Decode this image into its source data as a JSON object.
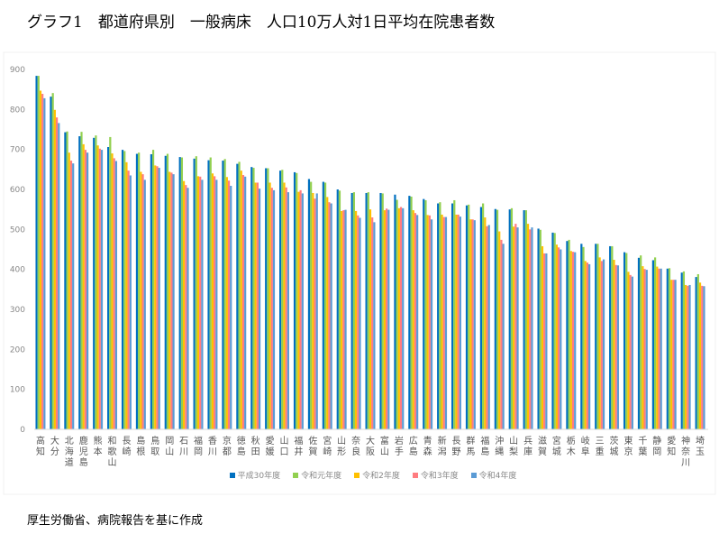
{
  "title": "グラフ1　都道府県別　一般病床　人口10万人対1日平均在院患者数",
  "source": "厚生労働省、病院報告を基に作成",
  "chart_data": {
    "type": "bar",
    "title": "グラフ1　都道府県別　一般病床　人口10万人対1日平均在院患者数",
    "xlabel": "",
    "ylabel": "",
    "ylim": [
      0,
      900
    ],
    "yticks": [
      0,
      100,
      200,
      300,
      400,
      500,
      600,
      700,
      800,
      900
    ],
    "grid": false,
    "legend": "bottom",
    "categories": [
      "高知",
      "大分",
      "北海道",
      "鹿児島",
      "熊本",
      "和歌山",
      "長崎",
      "島根",
      "鳥取",
      "岡山",
      "石川",
      "福岡",
      "香川",
      "京都",
      "徳島",
      "秋田",
      "愛媛",
      "山口",
      "福井",
      "佐賀",
      "宮崎",
      "山形",
      "奈良",
      "大阪",
      "富山",
      "岩手",
      "広島",
      "青森",
      "新潟",
      "長野",
      "群馬",
      "福島",
      "沖縄",
      "山梨",
      "兵庫",
      "滋賀",
      "宮城",
      "栃木",
      "岐阜",
      "三重",
      "茨城",
      "東京",
      "千葉",
      "静岡",
      "愛知",
      "神奈川",
      "埼玉"
    ],
    "series": [
      {
        "name": "平成30年度",
        "color": "#0070C0",
        "values": [
          884,
          832,
          743,
          733,
          729,
          706,
          699,
          689,
          688,
          684,
          681,
          677,
          673,
          672,
          664,
          656,
          653,
          647,
          643,
          626,
          619,
          600,
          591,
          591,
          591,
          587,
          584,
          576,
          565,
          565,
          560,
          556,
          551,
          550,
          548,
          502,
          492,
          471,
          464,
          464,
          458,
          443,
          429,
          423,
          402,
          392,
          381
        ]
      },
      {
        "name": "令和元年度",
        "color": "#92D050",
        "values": [
          884,
          841,
          745,
          744,
          735,
          731,
          696,
          692,
          699,
          689,
          680,
          683,
          680,
          676,
          669,
          654,
          653,
          649,
          641,
          619,
          617,
          597,
          593,
          593,
          590,
          574,
          582,
          573,
          568,
          573,
          562,
          565,
          549,
          553,
          548,
          499,
          491,
          474,
          456,
          464,
          458,
          441,
          435,
          430,
          403,
          395,
          388
        ]
      },
      {
        "name": "令和2年度",
        "color": "#FFC000",
        "values": [
          847,
          799,
          692,
          713,
          710,
          690,
          668,
          644,
          660,
          644,
          621,
          633,
          640,
          631,
          647,
          617,
          617,
          617,
          594,
          591,
          581,
          546,
          546,
          550,
          548,
          553,
          548,
          536,
          537,
          537,
          525,
          530,
          495,
          507,
          514,
          458,
          462,
          446,
          421,
          430,
          424,
          394,
          408,
          407,
          374,
          361,
          367
        ]
      },
      {
        "name": "令和3年度",
        "color": "#FF7C80",
        "values": [
          839,
          780,
          672,
          699,
          702,
          678,
          647,
          638,
          658,
          642,
          611,
          632,
          633,
          622,
          636,
          617,
          604,
          605,
          598,
          577,
          568,
          548,
          535,
          530,
          552,
          556,
          541,
          535,
          531,
          537,
          525,
          508,
          474,
          514,
          500,
          440,
          455,
          444,
          417,
          421,
          411,
          386,
          401,
          402,
          374,
          359,
          359
        ]
      },
      {
        "name": "令和4年度",
        "color": "#5B9BD5",
        "values": [
          828,
          766,
          665,
          692,
          699,
          671,
          635,
          624,
          654,
          638,
          604,
          624,
          624,
          609,
          632,
          602,
          598,
          593,
          590,
          590,
          565,
          549,
          529,
          518,
          549,
          553,
          536,
          525,
          531,
          532,
          523,
          511,
          464,
          505,
          505,
          440,
          450,
          443,
          413,
          425,
          410,
          382,
          399,
          402,
          374,
          361,
          358
        ]
      }
    ]
  }
}
